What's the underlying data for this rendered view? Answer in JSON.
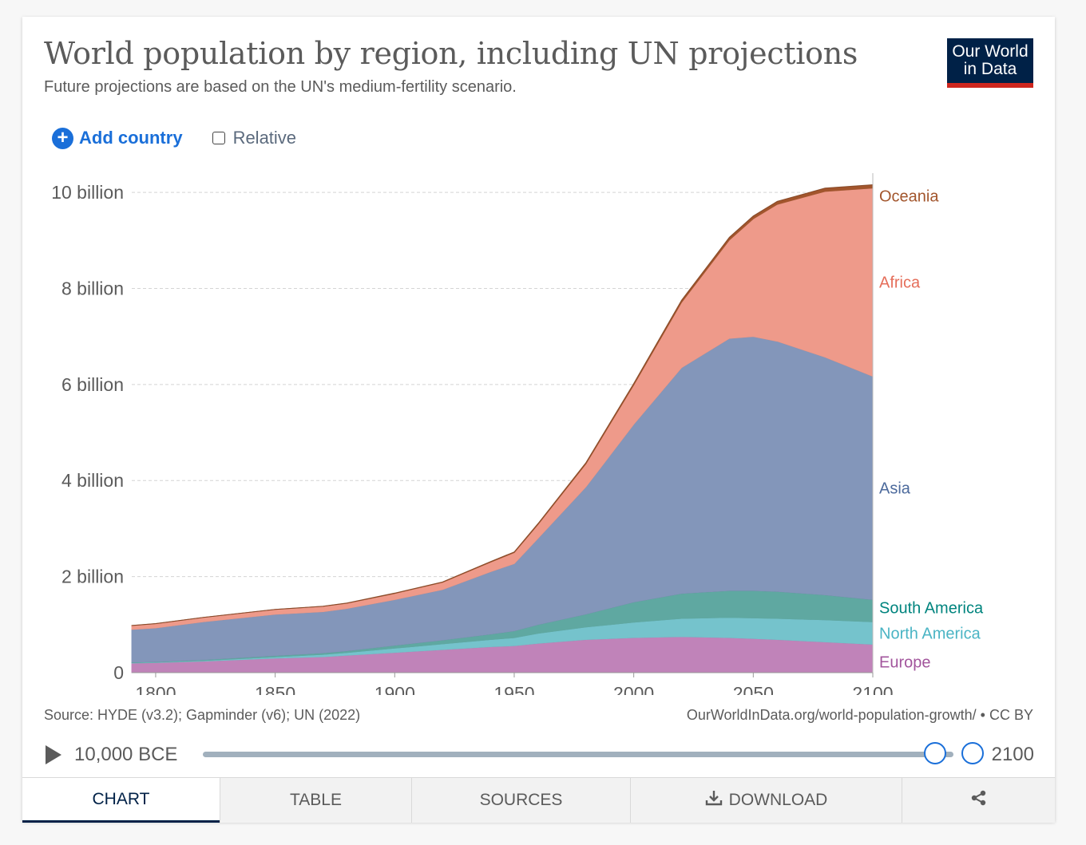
{
  "header": {
    "title": "World population by region, including UN projections",
    "subtitle": "Future projections are based on the UN's medium-fertility scenario.",
    "logo_line1": "Our World",
    "logo_line2": "in Data"
  },
  "controls": {
    "add_country_label": "Add country",
    "relative_label": "Relative",
    "relative_checked": false
  },
  "footer": {
    "source": "Source: HYDE (v3.2); Gapminder (v6); UN (2022)",
    "url": "OurWorldInData.org/world-population-growth/ • CC BY"
  },
  "timeline": {
    "start_label": "10,000 BCE",
    "end_label": "2100",
    "selected_start": 1800,
    "selected_end": 2100
  },
  "tabs": [
    {
      "label": "CHART",
      "active": true
    },
    {
      "label": "TABLE",
      "active": false
    },
    {
      "label": "SOURCES",
      "active": false
    },
    {
      "label": "DOWNLOAD",
      "active": false,
      "icon": "download-icon"
    },
    {
      "label": "",
      "active": false,
      "icon": "share-icon"
    }
  ],
  "chart_data": {
    "type": "area",
    "stacked": true,
    "title": "World population by region, including UN projections",
    "subtitle": "Future projections are based on the UN's medium-fertility scenario.",
    "ylim": [
      0,
      10500000000
    ],
    "xlim": [
      1790,
      2100
    ],
    "yticks": [
      {
        "value": 0,
        "label": "0"
      },
      {
        "value": 2000000000,
        "label": "2 billion"
      },
      {
        "value": 4000000000,
        "label": "4 billion"
      },
      {
        "value": 6000000000,
        "label": "6 billion"
      },
      {
        "value": 8000000000,
        "label": "8 billion"
      },
      {
        "value": 10000000000,
        "label": "10 billion"
      }
    ],
    "xticks": [
      1800,
      1850,
      1900,
      1950,
      2000,
      2050,
      2100
    ],
    "grid": "horizontal-dashed",
    "legend": "right-end-labels",
    "x": [
      1790,
      1800,
      1820,
      1850,
      1870,
      1880,
      1900,
      1920,
      1940,
      1950,
      1960,
      1980,
      2000,
      2020,
      2040,
      2050,
      2060,
      2080,
      2100
    ],
    "series": [
      {
        "name": "Europe",
        "color": "#c083b9",
        "values": [
          200000000,
          210000000,
          240000000,
          300000000,
          330000000,
          360000000,
          420000000,
          480000000,
          540000000,
          560000000,
          610000000,
          690000000,
          730000000,
          750000000,
          730000000,
          710000000,
          690000000,
          640000000,
          590000000
        ]
      },
      {
        "name": "North America",
        "color": "#75c3cc",
        "values": [
          10000000,
          10000000,
          15000000,
          30000000,
          50000000,
          60000000,
          90000000,
          120000000,
          150000000,
          170000000,
          210000000,
          260000000,
          320000000,
          380000000,
          420000000,
          430000000,
          440000000,
          460000000,
          470000000
        ]
      },
      {
        "name": "South America",
        "color": "#5fa8a1",
        "values": [
          10000000,
          10000000,
          15000000,
          25000000,
          30000000,
          35000000,
          60000000,
          80000000,
          110000000,
          140000000,
          180000000,
          270000000,
          420000000,
          520000000,
          560000000,
          570000000,
          560000000,
          520000000,
          460000000
        ]
      },
      {
        "name": "Asia",
        "color": "#8396ba",
        "values": [
          680000000,
          700000000,
          790000000,
          860000000,
          860000000,
          880000000,
          950000000,
          1050000000,
          1300000000,
          1400000000,
          1800000000,
          2650000000,
          3700000000,
          4700000000,
          5250000000,
          5290000000,
          5210000000,
          4950000000,
          4650000000
        ]
      },
      {
        "name": "Africa",
        "color": "#ee9a8a",
        "values": [
          80000000,
          90000000,
          90000000,
          100000000,
          110000000,
          110000000,
          130000000,
          150000000,
          200000000,
          230000000,
          290000000,
          480000000,
          820000000,
          1360000000,
          2050000000,
          2450000000,
          2850000000,
          3450000000,
          3920000000
        ]
      },
      {
        "name": "Oceania",
        "color": "#a2552c",
        "values": [
          2000000,
          2000000,
          2000000,
          2000000,
          3000000,
          3000000,
          6000000,
          9000000,
          11000000,
          13000000,
          16000000,
          23000000,
          31000000,
          44000000,
          54000000,
          58000000,
          62000000,
          68000000,
          70000000
        ]
      }
    ],
    "end_labels": [
      {
        "name": "Oceania",
        "color": "#a2552c"
      },
      {
        "name": "Africa",
        "color": "#e56e5a"
      },
      {
        "name": "Asia",
        "color": "#4c6a9c"
      },
      {
        "name": "South America",
        "color": "#00847e"
      },
      {
        "name": "North America",
        "color": "#4ab4c4"
      },
      {
        "name": "Europe",
        "color": "#a2559c"
      }
    ]
  }
}
